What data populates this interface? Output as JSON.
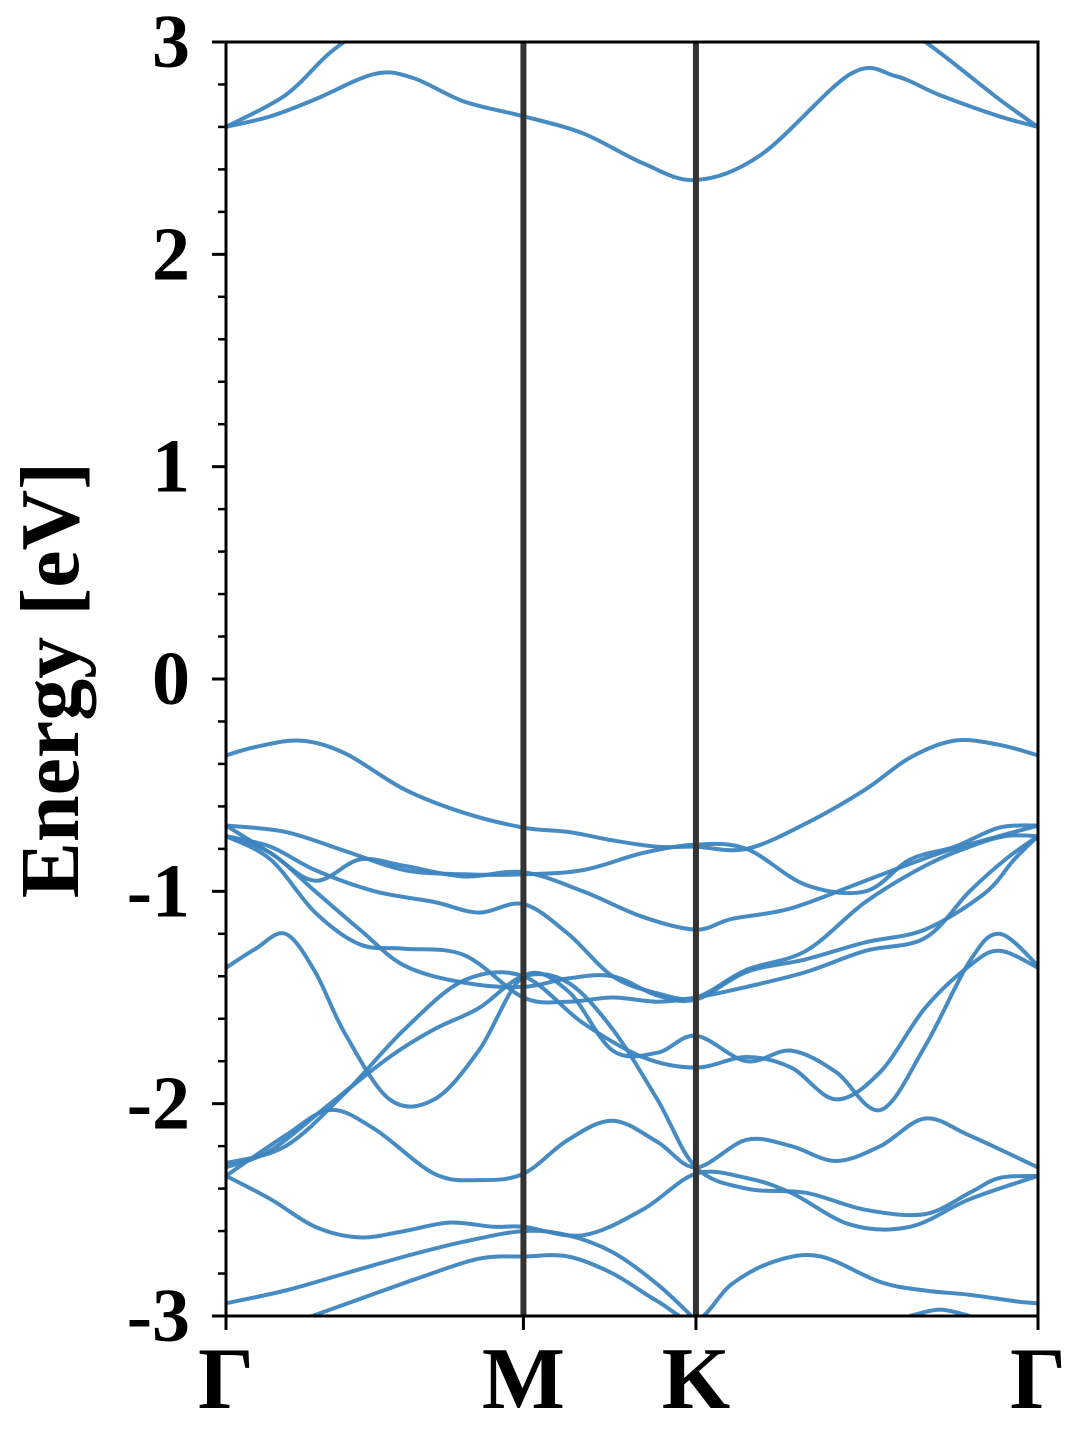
{
  "chart_data": {
    "type": "line",
    "title": "",
    "xlabel": "",
    "ylabel": "Energy [eV]",
    "ylim": [
      -3,
      3
    ],
    "y_ticks": [
      3,
      2,
      1,
      0,
      -1,
      -2,
      -3
    ],
    "y_tick_labels": [
      "3",
      "2",
      "1",
      "0",
      "-1",
      "-2",
      "-3"
    ],
    "k_points": [
      {
        "label": "Γ",
        "x": 0
      },
      {
        "label": "M",
        "x": 1
      },
      {
        "label": "K",
        "x": 1.58
      },
      {
        "label": "Γ",
        "x": 2.73
      }
    ],
    "grid": false,
    "legend": "none",
    "colors": {
      "band": "#3d85c0",
      "divider": "#333333"
    },
    "series": [
      {
        "x": [
          0,
          0.15,
          0.3,
          0.5,
          0.63,
          0.8,
          1.0,
          1.2,
          1.4,
          1.58,
          1.8,
          2.1,
          2.25,
          2.4,
          2.6,
          2.73
        ],
        "values": [
          2.6,
          2.65,
          2.73,
          2.85,
          2.83,
          2.72,
          2.65,
          2.57,
          2.43,
          2.35,
          2.47,
          2.85,
          2.84,
          2.75,
          2.65,
          2.6
        ]
      },
      {
        "x": [
          0,
          0.2,
          0.35,
          0.5
        ],
        "values": [
          2.6,
          2.75,
          2.95,
          3.1
        ]
      },
      {
        "x": [
          2.25,
          2.4,
          2.6,
          2.73
        ],
        "values": [
          3.1,
          2.95,
          2.73,
          2.6
        ]
      },
      {
        "x": [
          0,
          0.1,
          0.25,
          0.4,
          0.6,
          0.8,
          1.0,
          1.15,
          1.3,
          1.45,
          1.58,
          1.75,
          1.95,
          2.15,
          2.3,
          2.45,
          2.6,
          2.73
        ],
        "values": [
          -0.36,
          -0.32,
          -0.29,
          -0.35,
          -0.52,
          -0.63,
          -0.7,
          -0.72,
          -0.76,
          -0.79,
          -0.79,
          -0.8,
          -0.68,
          -0.52,
          -0.37,
          -0.29,
          -0.31,
          -0.36
        ]
      },
      {
        "x": [
          0,
          0.2,
          0.4,
          0.6,
          0.8,
          1.0,
          1.2,
          1.4,
          1.58,
          1.75,
          1.95,
          2.15,
          2.3,
          2.45,
          2.6,
          2.73
        ],
        "values": [
          -0.69,
          -0.72,
          -0.81,
          -0.9,
          -0.92,
          -0.92,
          -0.9,
          -0.82,
          -0.78,
          -0.8,
          -0.97,
          -1.0,
          -0.85,
          -0.79,
          -0.7,
          -0.69
        ]
      },
      {
        "x": [
          0,
          0.15,
          0.3,
          0.45,
          0.6,
          0.8,
          1.0,
          1.2,
          1.4,
          1.58,
          1.7,
          1.9,
          2.15,
          2.4,
          2.6,
          2.73
        ],
        "values": [
          -0.69,
          -0.82,
          -0.95,
          -0.85,
          -0.88,
          -0.93,
          -0.91,
          -1.0,
          -1.12,
          -1.18,
          -1.13,
          -1.08,
          -0.95,
          -0.82,
          -0.74,
          -0.69
        ]
      },
      {
        "x": [
          0,
          0.15,
          0.3,
          0.5,
          0.7,
          0.85,
          1.0,
          1.15,
          1.3,
          1.45,
          1.58,
          1.75,
          1.95,
          2.15,
          2.35,
          2.5,
          2.62,
          2.73
        ],
        "values": [
          -0.74,
          -0.79,
          -0.9,
          -1.0,
          -1.05,
          -1.1,
          -1.06,
          -1.2,
          -1.4,
          -1.48,
          -1.5,
          -1.37,
          -1.28,
          -1.05,
          -0.88,
          -0.79,
          -0.74,
          -0.74
        ]
      },
      {
        "x": [
          0,
          0.15,
          0.3,
          0.45,
          0.6,
          0.8,
          1.0,
          1.15,
          1.3,
          1.45,
          1.58,
          1.75,
          1.95,
          2.15,
          2.35,
          2.55,
          2.65,
          2.73
        ],
        "values": [
          -0.74,
          -0.82,
          -1.0,
          -1.18,
          -1.35,
          -1.43,
          -1.45,
          -1.41,
          -1.4,
          -1.49,
          -1.51,
          -1.38,
          -1.32,
          -1.24,
          -1.18,
          -1.01,
          -0.85,
          -0.74
        ]
      },
      {
        "x": [
          0,
          0.1,
          0.2,
          0.3,
          0.4,
          0.55,
          0.7,
          0.85,
          1.0,
          1.15,
          1.3,
          1.45,
          1.58,
          1.75,
          1.9,
          2.05,
          2.2,
          2.35,
          2.5,
          2.6,
          2.73
        ],
        "values": [
          -1.36,
          -1.27,
          -1.2,
          -1.38,
          -1.67,
          -1.98,
          -1.98,
          -1.75,
          -1.4,
          -1.47,
          -1.75,
          -1.76,
          -1.68,
          -1.8,
          -1.75,
          -1.85,
          -2.03,
          -1.73,
          -1.33,
          -1.2,
          -1.35
        ]
      },
      {
        "x": [
          0,
          0.15,
          0.3,
          0.45,
          0.6,
          0.8,
          1.0,
          1.15,
          1.3,
          1.45,
          1.58,
          1.75,
          1.95,
          2.15,
          2.35,
          2.5,
          2.62,
          2.73
        ],
        "values": [
          -0.74,
          -0.85,
          -1.1,
          -1.25,
          -1.27,
          -1.3,
          -1.5,
          -1.52,
          -1.5,
          -1.52,
          -1.5,
          -1.45,
          -1.38,
          -1.28,
          -1.22,
          -1.0,
          -0.85,
          -0.74
        ]
      },
      {
        "x": [
          0,
          0.2,
          0.4,
          0.6,
          0.8,
          1.0,
          1.2,
          1.4,
          1.58,
          1.75,
          1.9,
          2.05,
          2.2,
          2.35,
          2.5,
          2.6,
          2.73
        ],
        "values": [
          -2.28,
          -2.2,
          -1.95,
          -1.65,
          -1.42,
          -1.4,
          -1.62,
          -1.78,
          -1.83,
          -1.78,
          -1.83,
          -1.98,
          -1.85,
          -1.55,
          -1.35,
          -1.28,
          -1.36
        ]
      },
      {
        "x": [
          0,
          0.2,
          0.35,
          0.5,
          0.7,
          0.85,
          1.0,
          1.15,
          1.3,
          1.45,
          1.58,
          1.75,
          1.9,
          2.05,
          2.2,
          2.35,
          2.5,
          2.73
        ],
        "values": [
          -2.34,
          -2.15,
          -2.03,
          -2.12,
          -2.33,
          -2.36,
          -2.33,
          -2.17,
          -2.08,
          -2.18,
          -2.3,
          -2.17,
          -2.2,
          -2.27,
          -2.2,
          -2.07,
          -2.15,
          -2.3
        ]
      },
      {
        "x": [
          0,
          0.15,
          0.35,
          0.55,
          0.7,
          0.85,
          1.0,
          1.15,
          1.3,
          1.45,
          1.58,
          1.75,
          1.95,
          2.15,
          2.35,
          2.5,
          2.6,
          2.73
        ],
        "values": [
          -2.3,
          -2.22,
          -2.0,
          -1.78,
          -1.65,
          -1.55,
          -1.4,
          -1.43,
          -1.65,
          -1.98,
          -2.3,
          -2.4,
          -2.42,
          -2.5,
          -2.52,
          -2.42,
          -2.35,
          -2.34
        ]
      },
      {
        "x": [
          0,
          0.15,
          0.3,
          0.45,
          0.6,
          0.75,
          0.9,
          1.0,
          1.2,
          1.4,
          1.58,
          1.75,
          1.9,
          2.1,
          2.3,
          2.5,
          2.73
        ],
        "values": [
          -2.34,
          -2.45,
          -2.58,
          -2.63,
          -2.6,
          -2.56,
          -2.58,
          -2.58,
          -2.62,
          -2.5,
          -2.33,
          -2.35,
          -2.42,
          -2.57,
          -2.58,
          -2.45,
          -2.34
        ]
      },
      {
        "x": [
          0,
          0.2,
          0.4,
          0.6,
          0.8,
          1.0,
          1.15,
          1.3,
          1.45,
          1.58
        ],
        "values": [
          -2.94,
          -2.88,
          -2.8,
          -2.72,
          -2.65,
          -2.6,
          -2.62,
          -2.7,
          -2.85,
          -3.02
        ]
      },
      {
        "x": [
          0.25,
          0.45,
          0.65,
          0.85,
          1.0,
          1.15,
          1.3,
          1.45,
          1.58,
          1.7,
          1.85,
          2.0,
          2.2,
          2.35,
          2.5,
          2.65,
          2.73
        ],
        "values": [
          -3.02,
          -2.92,
          -2.82,
          -2.73,
          -2.72,
          -2.72,
          -2.8,
          -2.93,
          -3.02,
          -2.85,
          -2.74,
          -2.72,
          -2.84,
          -2.88,
          -2.9,
          -2.93,
          -2.94
        ]
      },
      {
        "x": [
          2.3,
          2.4,
          2.5
        ],
        "values": [
          -3.0,
          -2.97,
          -3.0
        ]
      }
    ]
  }
}
